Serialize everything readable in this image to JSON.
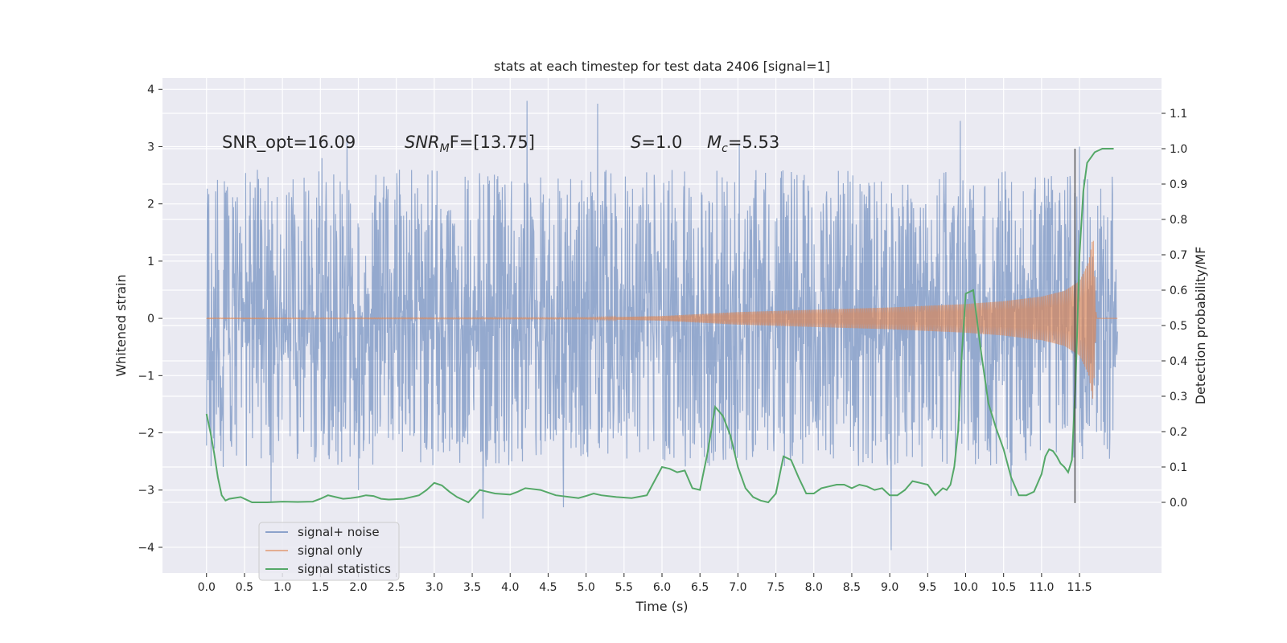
{
  "chart_data": {
    "type": "line",
    "title": "stats at each timestep for test data 2406 [signal=1]",
    "xlabel": "Time (s)",
    "ylabel": "Whitened strain",
    "ylabel_right": "Detection probability/MF",
    "xlim": [
      -0.58,
      12.58
    ],
    "ylim": [
      -4.45,
      4.2
    ],
    "ylim_right": [
      -0.2,
      1.2
    ],
    "x_ticks": [
      "0.0",
      "0.5",
      "1.0",
      "1.5",
      "2.0",
      "2.5",
      "3.0",
      "3.5",
      "4.0",
      "4.5",
      "5.0",
      "5.5",
      "6.0",
      "6.5",
      "7.0",
      "7.5",
      "8.0",
      "8.5",
      "9.0",
      "9.5",
      "10.0",
      "10.5",
      "11.0",
      "11.5"
    ],
    "y_ticks": [
      "−4",
      "−3",
      "−2",
      "−1",
      "0",
      "1",
      "2",
      "3",
      "4"
    ],
    "y_ticks_right": [
      "0.0",
      "0.1",
      "0.2",
      "0.3",
      "0.4",
      "0.5",
      "0.6",
      "0.7",
      "0.8",
      "0.9",
      "1.0",
      "1.1"
    ],
    "grid": true,
    "legend_position": "lower-left",
    "annotations": [
      {
        "id": "snr-opt",
        "text": "SNR_opt=16.09"
      },
      {
        "id": "snr-mf",
        "parts": [
          "SNR",
          "M",
          "F=[13.75]"
        ]
      },
      {
        "id": "s-value",
        "parts": [
          "S",
          "=1.0"
        ]
      },
      {
        "id": "mc-value",
        "parts": [
          "M",
          "c",
          "=5.53"
        ]
      }
    ],
    "vertical_line": {
      "x": 11.44,
      "y_right": [
        -0.002,
        1.0
      ]
    },
    "series": [
      {
        "name": "signal+ noise",
        "color": "#4c72b0",
        "kind": "noise",
        "x_range": [
          0.0,
          12.0
        ],
        "amplitude_envelope": 1.3,
        "spikes": [
          [
            4.22,
            3.8
          ],
          [
            5.15,
            3.75
          ],
          [
            9.93,
            3.45
          ],
          [
            1.85,
            3.2
          ],
          [
            7.02,
            3.05
          ],
          [
            11.5,
            3.0
          ],
          [
            1.52,
            2.8
          ],
          [
            9.02,
            -4.05
          ],
          [
            3.64,
            -3.5
          ],
          [
            4.7,
            -3.3
          ],
          [
            0.85,
            -3.2
          ],
          [
            2.0,
            -3.0
          ],
          [
            10.6,
            -3.1
          ]
        ]
      },
      {
        "name": "signal only",
        "color": "#dd8452",
        "kind": "chirp",
        "x_range": [
          0.0,
          12.0
        ],
        "envelope": [
          [
            0.0,
            0.005
          ],
          [
            5.0,
            0.01
          ],
          [
            6.0,
            0.04
          ],
          [
            7.0,
            0.11
          ],
          [
            8.0,
            0.15
          ],
          [
            9.0,
            0.19
          ],
          [
            10.0,
            0.25
          ],
          [
            10.5,
            0.3
          ],
          [
            11.0,
            0.38
          ],
          [
            11.3,
            0.48
          ],
          [
            11.5,
            0.65
          ],
          [
            11.62,
            0.98
          ],
          [
            11.68,
            1.45
          ],
          [
            11.72,
            0.0
          ],
          [
            12.0,
            0.0
          ]
        ]
      },
      {
        "name": "signal statistics",
        "color": "#55a868",
        "kind": "line",
        "x": [
          0.0,
          0.05,
          0.1,
          0.15,
          0.2,
          0.25,
          0.3,
          0.45,
          0.55,
          0.6,
          0.65,
          0.8,
          1.0,
          1.2,
          1.4,
          1.5,
          1.6,
          1.7,
          1.8,
          1.9,
          2.0,
          2.1,
          2.2,
          2.3,
          2.4,
          2.6,
          2.8,
          2.9,
          3.0,
          3.1,
          3.2,
          3.3,
          3.45,
          3.6,
          3.7,
          3.8,
          4.0,
          4.1,
          4.2,
          4.4,
          4.6,
          4.9,
          5.0,
          5.1,
          5.2,
          5.4,
          5.6,
          5.8,
          5.9,
          6.0,
          6.1,
          6.2,
          6.3,
          6.4,
          6.5,
          6.6,
          6.7,
          6.8,
          6.9,
          7.0,
          7.1,
          7.2,
          7.3,
          7.4,
          7.5,
          7.6,
          7.7,
          7.8,
          7.9,
          8.0,
          8.1,
          8.2,
          8.3,
          8.4,
          8.5,
          8.6,
          8.7,
          8.8,
          8.9,
          9.0,
          9.1,
          9.2,
          9.3,
          9.4,
          9.5,
          9.6,
          9.7,
          9.75,
          9.8,
          9.85,
          9.9,
          9.95,
          10.0,
          10.1,
          10.2,
          10.3,
          10.4,
          10.5,
          10.6,
          10.7,
          10.8,
          10.9,
          11.0,
          11.05,
          11.1,
          11.15,
          11.2,
          11.25,
          11.3,
          11.35,
          11.4,
          11.45,
          11.5,
          11.55,
          11.6,
          11.7,
          11.8,
          11.9,
          11.95
        ],
        "y": [
          0.25,
          0.2,
          0.14,
          0.07,
          0.02,
          0.005,
          0.01,
          0.015,
          0.005,
          0.0,
          0.0,
          0.0,
          0.002,
          0.001,
          0.002,
          0.01,
          0.02,
          0.015,
          0.01,
          0.012,
          0.015,
          0.02,
          0.018,
          0.01,
          0.008,
          0.01,
          0.02,
          0.035,
          0.055,
          0.048,
          0.03,
          0.015,
          0.0,
          0.035,
          0.03,
          0.025,
          0.022,
          0.03,
          0.04,
          0.035,
          0.02,
          0.012,
          0.018,
          0.025,
          0.02,
          0.015,
          0.012,
          0.02,
          0.06,
          0.1,
          0.095,
          0.085,
          0.09,
          0.04,
          0.035,
          0.14,
          0.27,
          0.245,
          0.19,
          0.1,
          0.04,
          0.015,
          0.005,
          0.0,
          0.025,
          0.13,
          0.12,
          0.07,
          0.025,
          0.025,
          0.04,
          0.045,
          0.05,
          0.05,
          0.04,
          0.05,
          0.045,
          0.035,
          0.04,
          0.02,
          0.02,
          0.035,
          0.06,
          0.055,
          0.05,
          0.02,
          0.04,
          0.035,
          0.05,
          0.1,
          0.2,
          0.42,
          0.59,
          0.6,
          0.43,
          0.28,
          0.21,
          0.15,
          0.07,
          0.02,
          0.02,
          0.03,
          0.08,
          0.13,
          0.15,
          0.145,
          0.13,
          0.11,
          0.1,
          0.085,
          0.12,
          0.35,
          0.7,
          0.88,
          0.96,
          0.99,
          1.0,
          1.0,
          1.0
        ]
      }
    ]
  }
}
